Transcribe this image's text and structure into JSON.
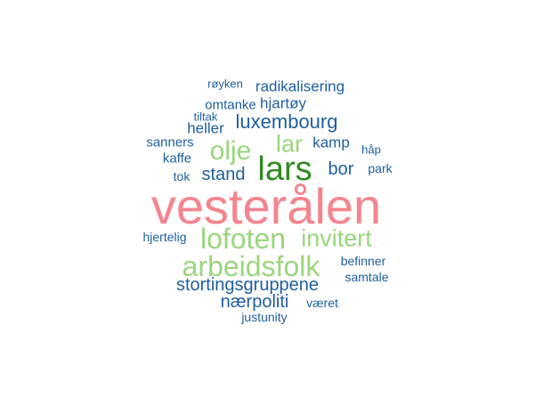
{
  "colors": {
    "pink": "#f4858e",
    "dark_green": "#2e8b1f",
    "light_green": "#9ad67e",
    "blue": "#1f5f9e"
  },
  "words": [
    {
      "id": "vesteralen",
      "text": "vesterålen",
      "color": "pink"
    },
    {
      "id": "lars",
      "text": "lars",
      "color": "dark_green"
    },
    {
      "id": "olje",
      "text": "olje",
      "color": "light_green"
    },
    {
      "id": "lar",
      "text": "lar",
      "color": "light_green"
    },
    {
      "id": "lofoten",
      "text": "lofoten",
      "color": "light_green"
    },
    {
      "id": "invitert",
      "text": "invitert",
      "color": "light_green"
    },
    {
      "id": "arbeidsfolk",
      "text": "arbeidsfolk",
      "color": "light_green"
    },
    {
      "id": "luxembourg",
      "text": "luxembourg",
      "color": "blue"
    },
    {
      "id": "stortingsgruppene",
      "text": "stortingsgruppene",
      "color": "blue"
    },
    {
      "id": "naerpoliti",
      "text": "nærpoliti",
      "color": "blue"
    },
    {
      "id": "radikalisering",
      "text": "radikalisering",
      "color": "blue"
    },
    {
      "id": "hjartoy",
      "text": "hjartøy",
      "color": "blue"
    },
    {
      "id": "stand",
      "text": "stand",
      "color": "blue"
    },
    {
      "id": "bor",
      "text": "bor",
      "color": "blue"
    },
    {
      "id": "kamp",
      "text": "kamp",
      "color": "blue"
    },
    {
      "id": "omtanke",
      "text": "omtanke",
      "color": "blue"
    },
    {
      "id": "heller",
      "text": "heller",
      "color": "blue"
    },
    {
      "id": "sanners",
      "text": "sanners",
      "color": "blue"
    },
    {
      "id": "kaffe",
      "text": "kaffe",
      "color": "blue"
    },
    {
      "id": "hjertelig",
      "text": "hjertelig",
      "color": "blue"
    },
    {
      "id": "befinner",
      "text": "befinner",
      "color": "blue"
    },
    {
      "id": "samtale",
      "text": "samtale",
      "color": "blue"
    },
    {
      "id": "vaeret",
      "text": "været",
      "color": "blue"
    },
    {
      "id": "justunity",
      "text": "justunity",
      "color": "blue"
    },
    {
      "id": "royken",
      "text": "røyken",
      "color": "blue"
    },
    {
      "id": "tiltak",
      "text": "tiltak",
      "color": "blue"
    },
    {
      "id": "tok",
      "text": "tok",
      "color": "blue"
    },
    {
      "id": "hap",
      "text": "håp",
      "color": "blue"
    },
    {
      "id": "park",
      "text": "park",
      "color": "blue"
    }
  ]
}
